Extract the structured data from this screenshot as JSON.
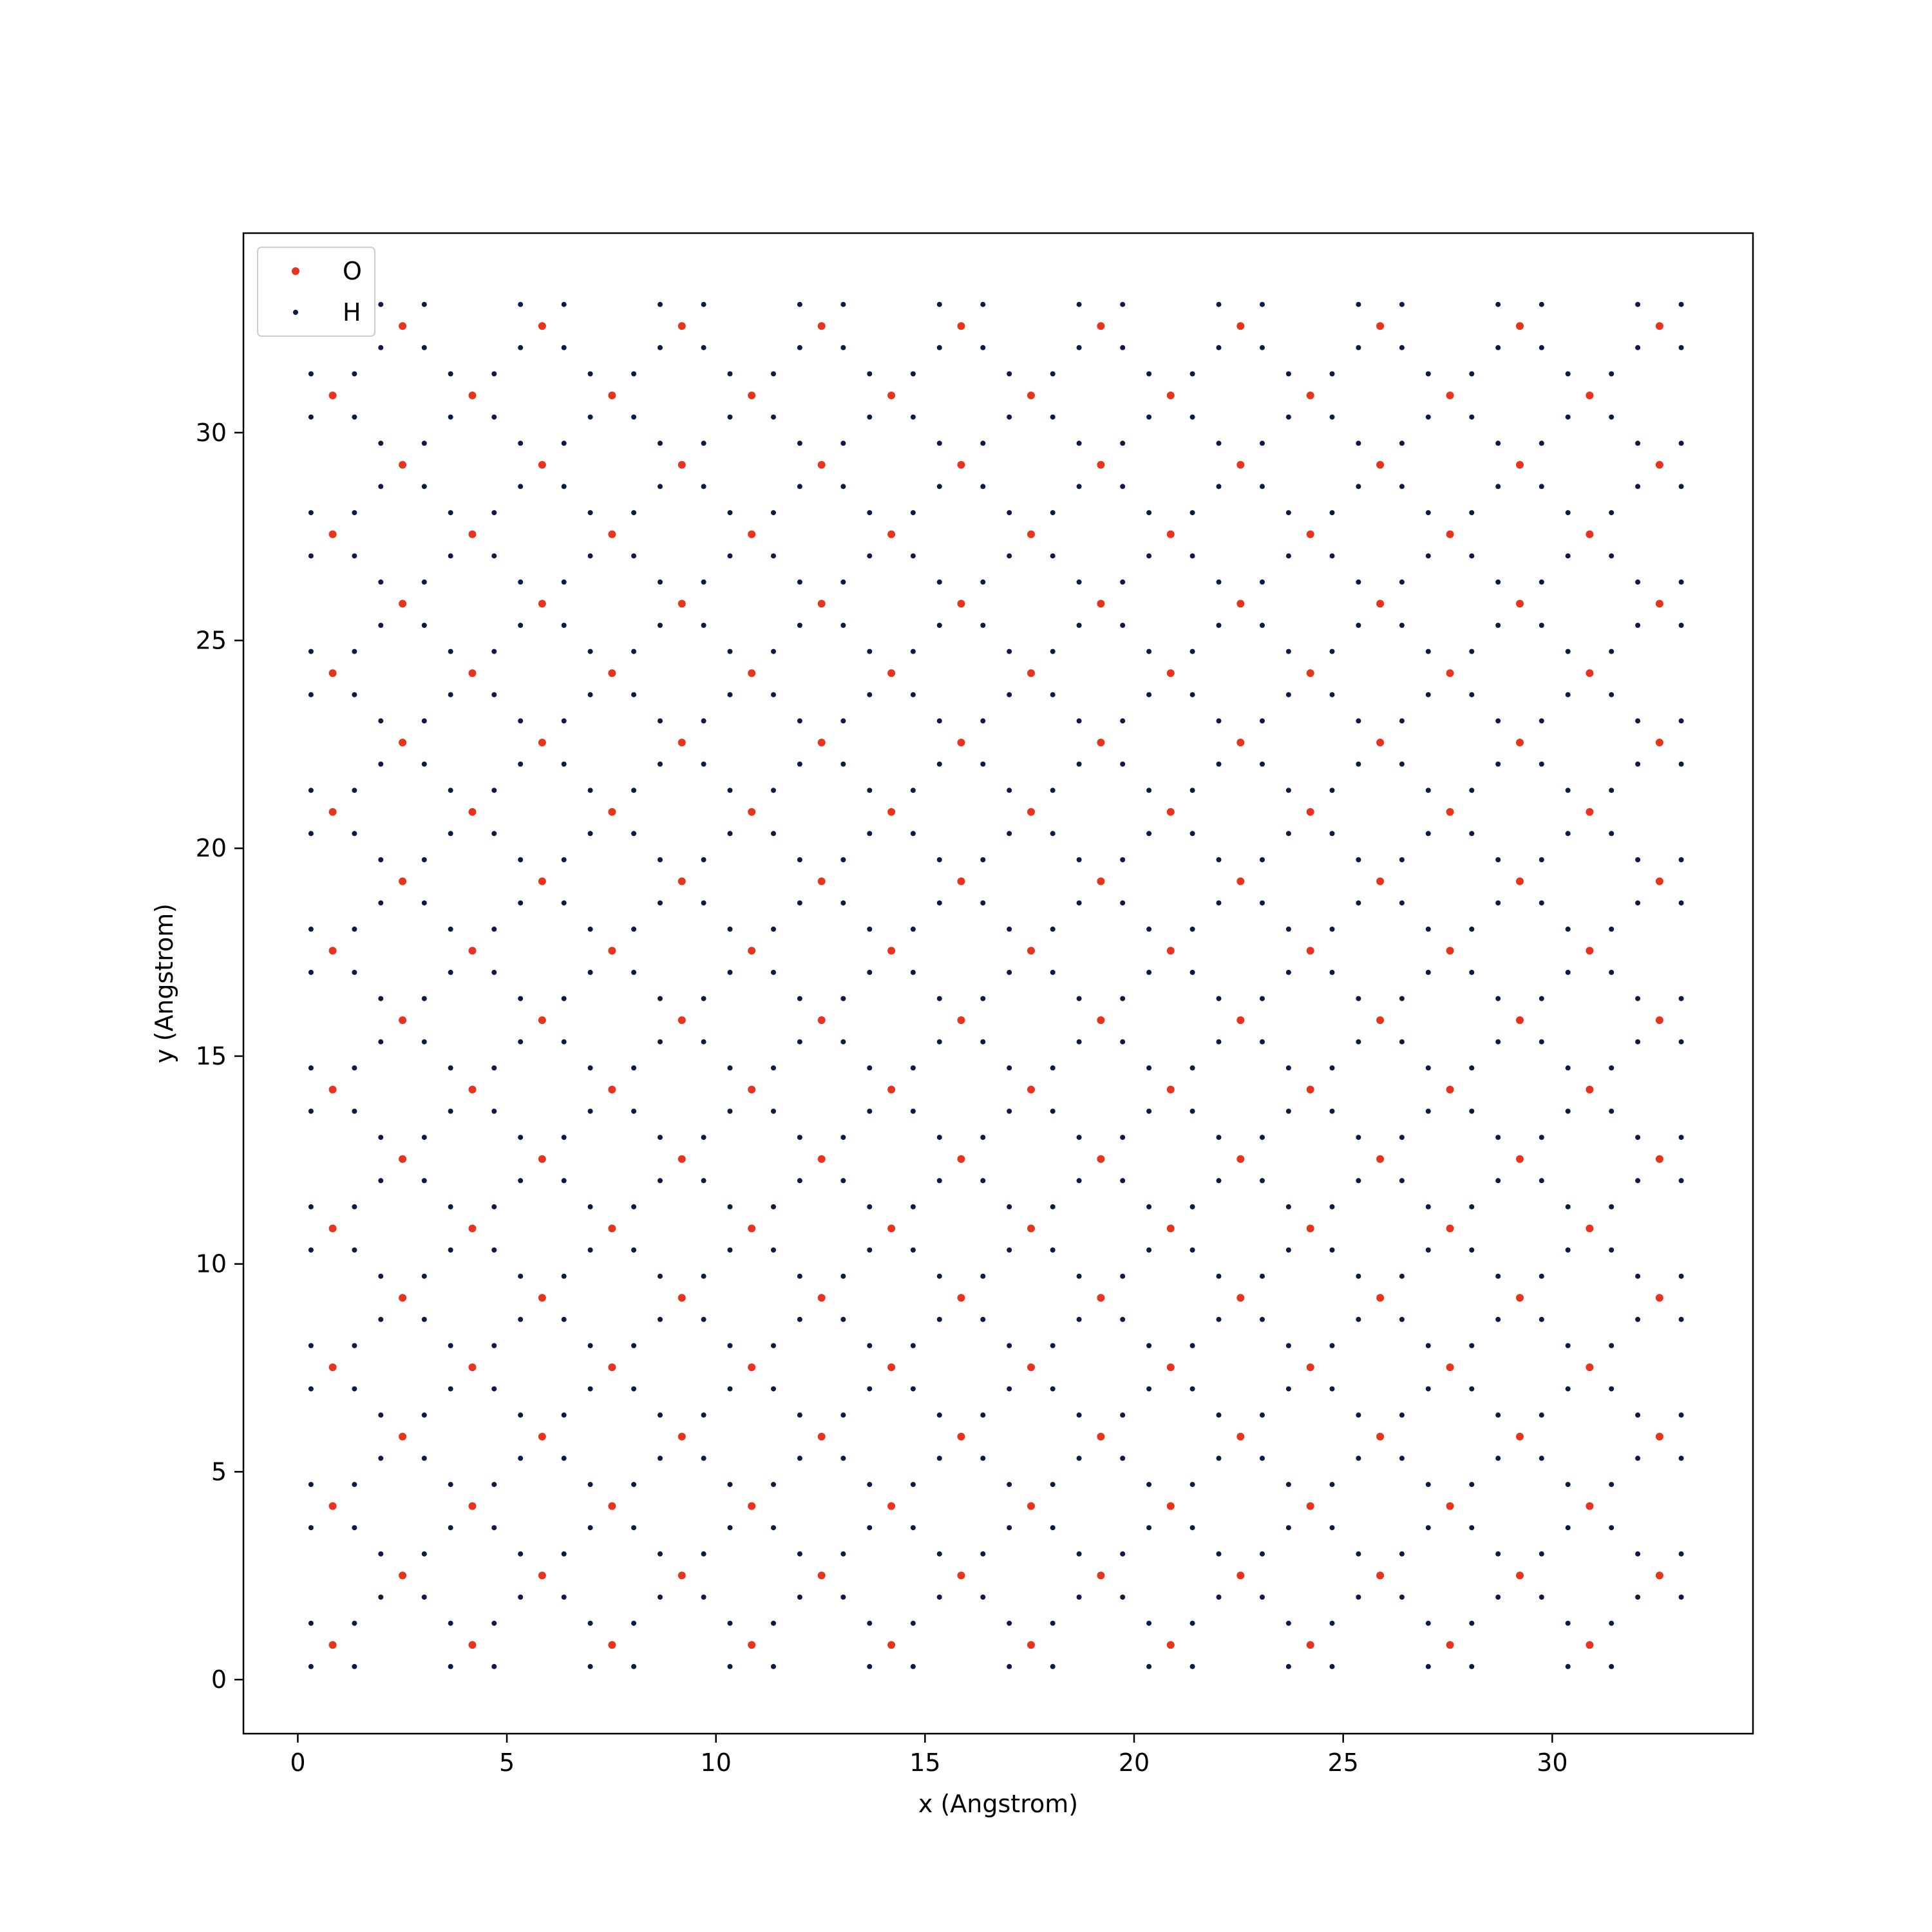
{
  "chart_data": {
    "type": "scatter",
    "title": "",
    "xlabel": "x (Angstrom)",
    "ylabel": "y (Angstrom)",
    "xlim": [
      -1.3,
      34.8
    ],
    "ylim": [
      -1.3,
      34.8
    ],
    "xticks": [
      0,
      5,
      10,
      15,
      20,
      25,
      30
    ],
    "yticks": [
      0,
      5,
      10,
      15,
      20,
      25,
      30
    ],
    "grid": false,
    "legend_placement": "top-left",
    "lattice": {
      "a": 3.34,
      "rows": 20,
      "row_spacing": 1.67,
      "o_x_even_rows": 0.835,
      "o_x_odd_rows": 2.505,
      "o_y_start": 0.835,
      "h_offsets": [
        [
          -0.52,
          -0.52
        ],
        [
          0.52,
          -0.52
        ],
        [
          -0.52,
          0.52
        ],
        [
          0.52,
          0.52
        ]
      ]
    },
    "series": [
      {
        "name": "O",
        "color": "#e8341c",
        "marker": "circle"
      },
      {
        "name": "H",
        "color": "#0c1a45",
        "marker": "circle"
      }
    ]
  }
}
